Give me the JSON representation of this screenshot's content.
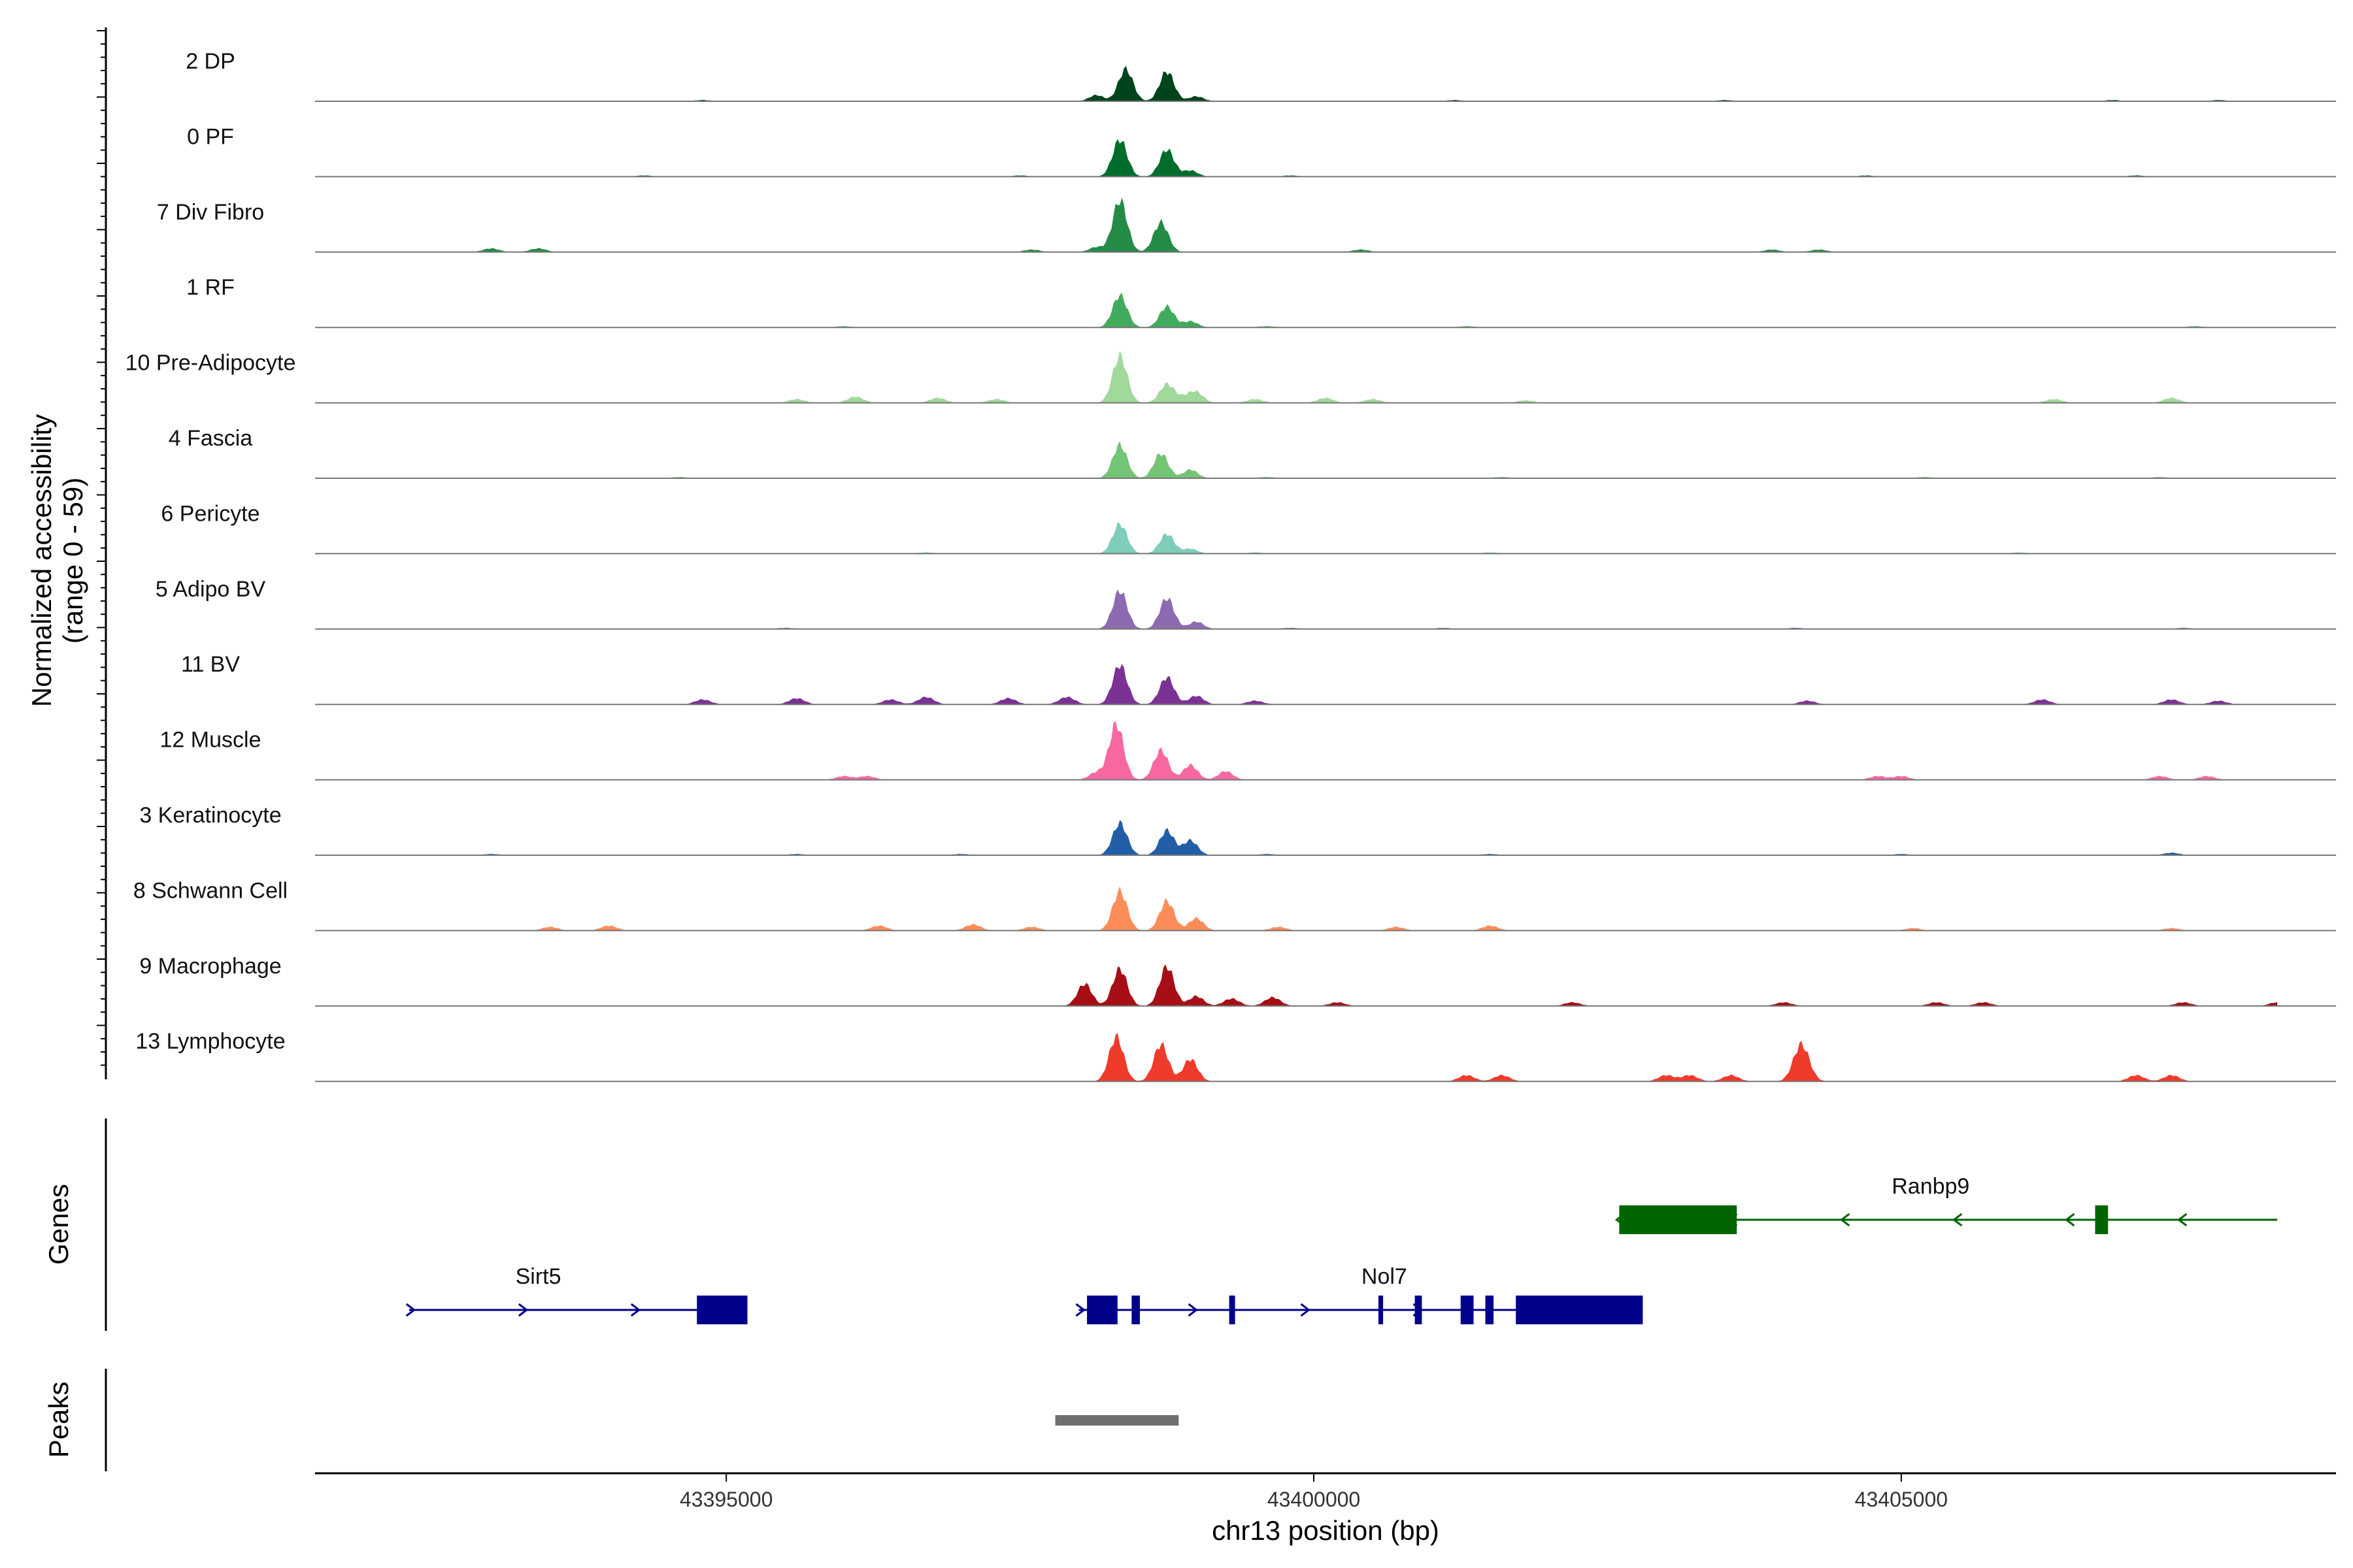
{
  "chart_data": {
    "type": "area",
    "title": "",
    "xlabel": "chr13 position (bp)",
    "ylabel": "Normalized accessibility",
    "ylabel_range": "(range 0 - 59)",
    "ylim": [
      0,
      59
    ],
    "xlim": [
      43391500,
      43408700
    ],
    "x_ticks": [
      43395000,
      43400000,
      43405000
    ],
    "x_tick_labels": [
      "43395000",
      "43400000",
      "43405000"
    ],
    "tracks": [
      {
        "name": "2 DP",
        "color": "#00441b",
        "peaks": [
          [
            43398400,
            26
          ],
          [
            43398750,
            24
          ],
          [
            43398150,
            5
          ],
          [
            43399000,
            4
          ]
        ],
        "minor": [
          [
            43394800,
            1
          ],
          [
            43401200,
            1
          ],
          [
            43403500,
            1
          ],
          [
            43406800,
            1
          ],
          [
            43407700,
            1
          ]
        ]
      },
      {
        "name": "0 PF",
        "color": "#006d2c",
        "peaks": [
          [
            43398350,
            30
          ],
          [
            43398750,
            22
          ],
          [
            43398950,
            5
          ]
        ],
        "minor": [
          [
            43394300,
            1
          ],
          [
            43397500,
            1
          ],
          [
            43399800,
            1
          ],
          [
            43404700,
            1
          ],
          [
            43407000,
            1
          ]
        ]
      },
      {
        "name": "7 Div Fibro",
        "color": "#238b45",
        "peaks": [
          [
            43398350,
            42
          ],
          [
            43398700,
            24
          ],
          [
            43398150,
            4
          ]
        ],
        "minor": [
          [
            43393000,
            3
          ],
          [
            43393400,
            3
          ],
          [
            43397600,
            2
          ],
          [
            43400400,
            2
          ],
          [
            43403900,
            2
          ],
          [
            43404300,
            2
          ]
        ]
      },
      {
        "name": "1 RF",
        "color": "#41ab5d",
        "peaks": [
          [
            43398350,
            26
          ],
          [
            43398750,
            17
          ],
          [
            43398950,
            5
          ]
        ],
        "minor": [
          [
            43396000,
            1
          ],
          [
            43399600,
            1
          ],
          [
            43401300,
            1
          ],
          [
            43407500,
            1
          ]
        ]
      },
      {
        "name": "10 Pre-Adipocyte",
        "color": "#a1d99b",
        "peaks": [
          [
            43398350,
            38
          ],
          [
            43398750,
            15
          ],
          [
            43399000,
            8
          ]
        ],
        "minor": [
          [
            43395600,
            3
          ],
          [
            43396100,
            5
          ],
          [
            43396800,
            4
          ],
          [
            43397300,
            3
          ],
          [
            43398900,
            4
          ],
          [
            43399500,
            3
          ],
          [
            43400100,
            4
          ],
          [
            43400500,
            3
          ],
          [
            43401800,
            2
          ],
          [
            43406300,
            3
          ],
          [
            43407300,
            4
          ]
        ]
      },
      {
        "name": "4 Fascia",
        "color": "#74c476",
        "peaks": [
          [
            43398350,
            27
          ],
          [
            43398700,
            20
          ],
          [
            43398950,
            7
          ]
        ],
        "minor": [
          [
            43394600,
            1
          ],
          [
            43399600,
            1
          ],
          [
            43401600,
            1
          ],
          [
            43405200,
            1
          ],
          [
            43407200,
            1
          ]
        ]
      },
      {
        "name": "6 Pericyte",
        "color": "#7fcdbb",
        "peaks": [
          [
            43398350,
            24
          ],
          [
            43398750,
            16
          ],
          [
            43398950,
            4
          ]
        ],
        "minor": [
          [
            43396700,
            1
          ],
          [
            43399500,
            1
          ],
          [
            43401500,
            1
          ],
          [
            43406000,
            1
          ]
        ]
      },
      {
        "name": "5 Adipo BV",
        "color": "#8c6bb1",
        "peaks": [
          [
            43398350,
            31
          ],
          [
            43398750,
            25
          ],
          [
            43399000,
            6
          ]
        ],
        "minor": [
          [
            43395500,
            1
          ],
          [
            43399800,
            1
          ],
          [
            43401100,
            1
          ],
          [
            43404100,
            1
          ],
          [
            43407400,
            1
          ]
        ]
      },
      {
        "name": "11 BV",
        "color": "#7b3294",
        "peaks": [
          [
            43398350,
            32
          ],
          [
            43398750,
            22
          ],
          [
            43399000,
            7
          ]
        ],
        "minor": [
          [
            43394800,
            4
          ],
          [
            43395600,
            5
          ],
          [
            43396400,
            4
          ],
          [
            43396700,
            6
          ],
          [
            43397400,
            5
          ],
          [
            43397900,
            6
          ],
          [
            43399500,
            3
          ],
          [
            43404200,
            3
          ],
          [
            43406200,
            4
          ],
          [
            43407300,
            4
          ],
          [
            43407700,
            3
          ]
        ]
      },
      {
        "name": "12 Muscle",
        "color": "#f768a1",
        "peaks": [
          [
            43398320,
            45
          ],
          [
            43398700,
            24
          ],
          [
            43398950,
            12
          ],
          [
            43399250,
            7
          ],
          [
            43398150,
            6
          ]
        ],
        "minor": [
          [
            43396000,
            3
          ],
          [
            43396200,
            3
          ],
          [
            43404800,
            3
          ],
          [
            43405000,
            3
          ],
          [
            43407200,
            3
          ],
          [
            43407600,
            3
          ]
        ]
      },
      {
        "name": "3 Keratinocyte",
        "color": "#225ea8",
        "peaks": [
          [
            43398350,
            26
          ],
          [
            43398750,
            20
          ],
          [
            43398950,
            12
          ]
        ],
        "minor": [
          [
            43393000,
            1
          ],
          [
            43395600,
            1
          ],
          [
            43397000,
            1
          ],
          [
            43399600,
            1
          ],
          [
            43401500,
            1
          ],
          [
            43405000,
            1
          ],
          [
            43407300,
            2
          ]
        ]
      },
      {
        "name": "8 Schwann Cell",
        "color": "#fc8d59",
        "peaks": [
          [
            43398350,
            32
          ],
          [
            43398750,
            24
          ],
          [
            43399000,
            10
          ]
        ],
        "minor": [
          [
            43393500,
            3
          ],
          [
            43394000,
            4
          ],
          [
            43396300,
            4
          ],
          [
            43397100,
            5
          ],
          [
            43397600,
            3
          ],
          [
            43399700,
            3
          ],
          [
            43400700,
            3
          ],
          [
            43401500,
            4
          ],
          [
            43405100,
            2
          ],
          [
            43407300,
            2
          ]
        ]
      },
      {
        "name": "9 Macrophage",
        "color": "#a50f15",
        "peaks": [
          [
            43398350,
            30
          ],
          [
            43398750,
            32
          ],
          [
            43398050,
            18
          ],
          [
            43399000,
            8
          ]
        ],
        "minor": [
          [
            43399300,
            6
          ],
          [
            43399650,
            7
          ],
          [
            43400200,
            3
          ],
          [
            43402200,
            3
          ],
          [
            43404000,
            3
          ],
          [
            43405300,
            3
          ],
          [
            43405700,
            3
          ],
          [
            43407400,
            3
          ],
          [
            43408200,
            3
          ]
        ]
      },
      {
        "name": "13 Lymphocyte",
        "color": "#ef3b2c",
        "peaks": [
          [
            43398320,
            36
          ],
          [
            43398700,
            30
          ],
          [
            43398950,
            18
          ]
        ],
        "minor": [
          [
            43401300,
            5
          ],
          [
            43401600,
            5
          ],
          [
            43403000,
            5
          ],
          [
            43403200,
            5
          ],
          [
            43403550,
            5
          ],
          [
            43404150,
            30
          ],
          [
            43407000,
            5
          ],
          [
            43407300,
            5
          ]
        ]
      }
    ],
    "genes": [
      {
        "name": "Sirt5",
        "strand": "+",
        "start": 43392300,
        "end": 43395180,
        "color": "#00008b",
        "exons": [
          [
            43394750,
            43395180
          ]
        ]
      },
      {
        "name": "Nol7",
        "strand": "+",
        "start": 43398000,
        "end": 43402800,
        "color": "#00008b",
        "exons": [
          [
            43398070,
            43398330
          ],
          [
            43398450,
            43398520
          ],
          [
            43399280,
            43399330
          ],
          [
            43400550,
            43400590
          ],
          [
            43400860,
            43400920
          ],
          [
            43401250,
            43401360
          ],
          [
            43401460,
            43401530
          ],
          [
            43401720,
            43402800
          ]
        ]
      },
      {
        "name": "Ranbp9",
        "strand": "-",
        "start": 43402600,
        "end": 43408200,
        "color": "#006400",
        "exons": [
          [
            43402600,
            43403600
          ],
          [
            43406650,
            43406760
          ]
        ]
      }
    ],
    "peaks": [
      [
        43397800,
        43398850
      ]
    ]
  }
}
